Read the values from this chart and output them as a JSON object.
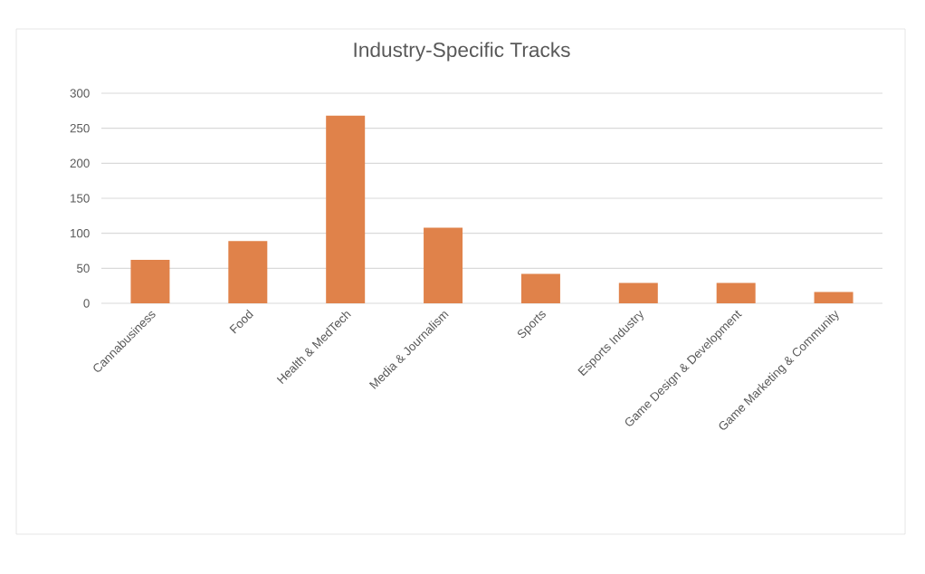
{
  "chart_data": {
    "type": "bar",
    "title": "Industry-Specific Tracks",
    "categories": [
      "Cannabusiness",
      "Food",
      "Health & MedTech",
      "Media & Journalism",
      "Sports",
      "Esports Industry",
      "Game Design & Development",
      "Game Marketing & Community"
    ],
    "values": [
      62,
      89,
      268,
      108,
      42,
      29,
      29,
      16
    ],
    "color": "#e0824a",
    "ylim": [
      0,
      300
    ],
    "yticks": [
      0,
      50,
      100,
      150,
      200,
      250,
      300
    ],
    "grid": "y"
  }
}
